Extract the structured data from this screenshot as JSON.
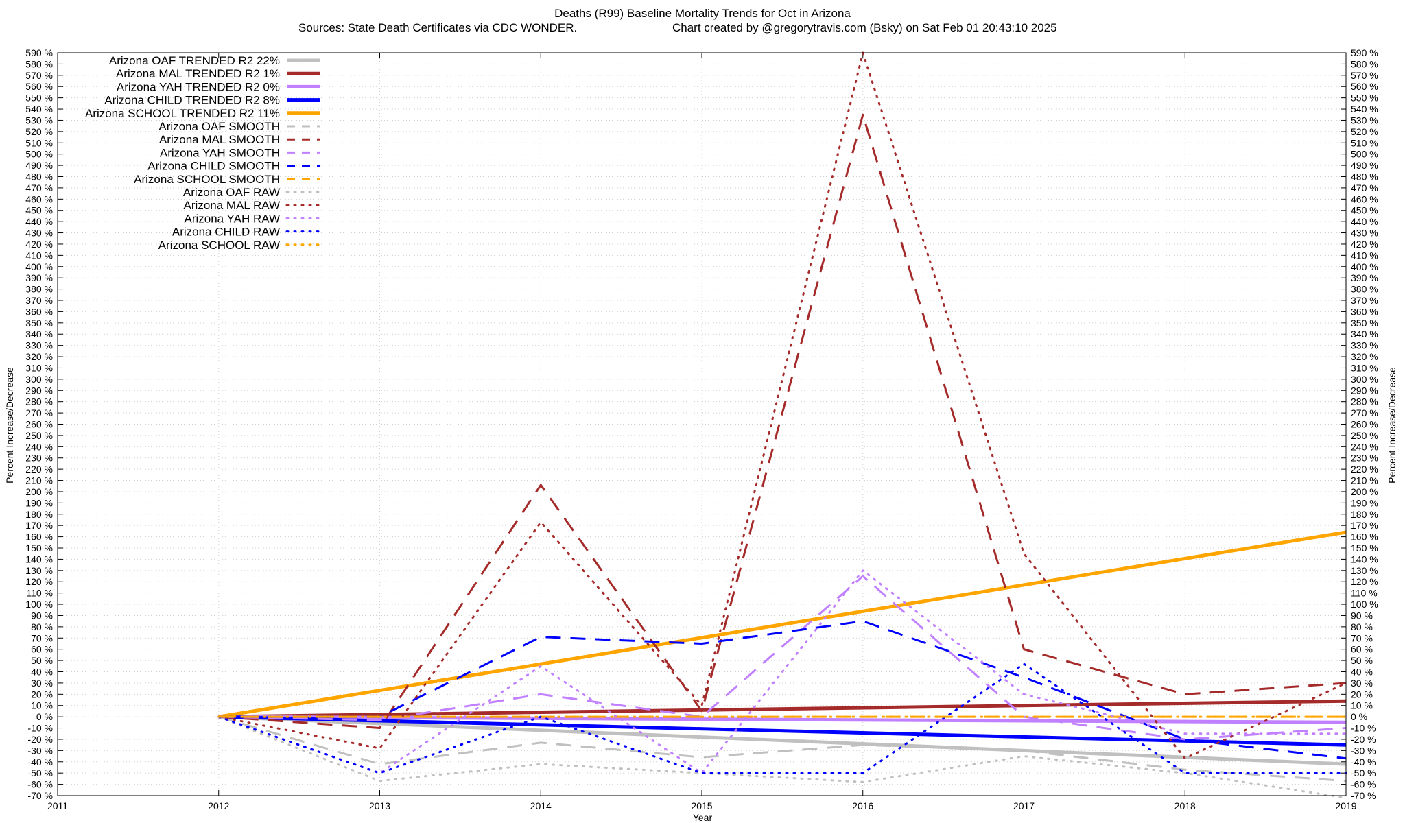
{
  "chart_data": {
    "type": "line",
    "title": "Deaths (R99)  Baseline Mortality Trends for Oct in Arizona",
    "subtitle_left": "Sources: State Death Certificates via CDC WONDER.",
    "subtitle_right": "Chart created by @gregorytravis.com (Bsky) on Sat Feb 01 20:43:10 2025",
    "xlabel": "Year",
    "ylabel": "Percent Increase/Decrease",
    "ylabel_right": "Percent Increase/Decrease",
    "xlim": [
      2011,
      2019
    ],
    "ylim": [
      -70,
      590
    ],
    "x_ticks": [
      "2011",
      "2012",
      "2013",
      "2014",
      "2015",
      "2016",
      "2017",
      "2018",
      "2019"
    ],
    "y_tick_step": 10,
    "y_tick_suffix": " %",
    "grid": true,
    "legend_position": "top-left",
    "series": [
      {
        "name": "Arizona OAF TRENDED R2  22%",
        "color": "#c0c0c0",
        "style": "solid",
        "x": [
          2012,
          2019
        ],
        "values": [
          0,
          -42
        ]
      },
      {
        "name": "Arizona MAL TRENDED R2   1%",
        "color": "#a52a2a",
        "style": "solid",
        "x": [
          2012,
          2019
        ],
        "values": [
          0,
          14
        ]
      },
      {
        "name": "Arizona YAH TRENDED R2   0%",
        "color": "#c080ff",
        "style": "solid",
        "x": [
          2012,
          2019
        ],
        "values": [
          0,
          -5
        ]
      },
      {
        "name": "Arizona CHILD TRENDED R2   8%",
        "color": "#0000ff",
        "style": "solid",
        "x": [
          2012,
          2019
        ],
        "values": [
          0,
          -25
        ]
      },
      {
        "name": "Arizona SCHOOL TRENDED R2  11%",
        "color": "#ffa500",
        "style": "solid",
        "x": [
          2012,
          2019
        ],
        "values": [
          0,
          164
        ]
      },
      {
        "name": "Arizona OAF SMOOTH",
        "color": "#c0c0c0",
        "style": "dash",
        "x": [
          2012,
          2013,
          2014,
          2015,
          2016,
          2017,
          2018,
          2019
        ],
        "values": [
          0,
          -42,
          -23,
          -36,
          -25,
          -30,
          -47,
          -57
        ]
      },
      {
        "name": "Arizona MAL SMOOTH",
        "color": "#a52a2a",
        "style": "dash",
        "x": [
          2012,
          2013,
          2014,
          2015,
          2016,
          2017,
          2018,
          2019
        ],
        "values": [
          0,
          -10,
          206,
          5,
          535,
          60,
          20,
          30
        ]
      },
      {
        "name": "Arizona YAH SMOOTH",
        "color": "#c080ff",
        "style": "dash",
        "x": [
          2012,
          2013,
          2014,
          2015,
          2016,
          2017,
          2018,
          2019
        ],
        "values": [
          0,
          -3,
          20,
          0,
          125,
          0,
          -20,
          -10
        ]
      },
      {
        "name": "Arizona CHILD SMOOTH",
        "color": "#0000ff",
        "style": "dash",
        "x": [
          2012,
          2013,
          2014,
          2015,
          2016,
          2017,
          2018,
          2019
        ],
        "values": [
          0,
          0,
          71,
          65,
          85,
          35,
          -20,
          -37
        ]
      },
      {
        "name": "Arizona SCHOOL SMOOTH",
        "color": "#ffa500",
        "style": "dash",
        "x": [
          2012,
          2013,
          2014,
          2015,
          2016,
          2017,
          2018,
          2019
        ],
        "values": [
          0,
          0,
          0,
          0,
          0,
          0,
          0,
          0
        ]
      },
      {
        "name": "Arizona OAF RAW",
        "color": "#c0c0c0",
        "style": "dot",
        "x": [
          2012,
          2013,
          2014,
          2015,
          2016,
          2017,
          2018,
          2019
        ],
        "values": [
          0,
          -57,
          -42,
          -50,
          -58,
          -35,
          -50,
          -72
        ]
      },
      {
        "name": "Arizona MAL RAW",
        "color": "#a52a2a",
        "style": "dot",
        "x": [
          2012,
          2013,
          2014,
          2015,
          2016,
          2017,
          2018,
          2019
        ],
        "values": [
          0,
          -28,
          173,
          10,
          590,
          145,
          -37,
          30
        ]
      },
      {
        "name": "Arizona YAH RAW",
        "color": "#c080ff",
        "style": "dot",
        "x": [
          2012,
          2013,
          2014,
          2015,
          2016,
          2017,
          2018,
          2019
        ],
        "values": [
          0,
          -50,
          45,
          -50,
          130,
          20,
          -15,
          -15
        ]
      },
      {
        "name": "Arizona CHILD RAW",
        "color": "#0000ff",
        "style": "dot",
        "x": [
          2012,
          2013,
          2014,
          2015,
          2016,
          2017,
          2018,
          2019
        ],
        "values": [
          0,
          -50,
          0,
          -50,
          -50,
          47,
          -50,
          -50
        ]
      },
      {
        "name": "Arizona SCHOOL RAW",
        "color": "#ffa500",
        "style": "dot",
        "x": [
          2012,
          2013,
          2014,
          2015,
          2016,
          2017,
          2018,
          2019
        ],
        "values": [
          0,
          0,
          0,
          0,
          0,
          0,
          0,
          0
        ]
      }
    ]
  }
}
